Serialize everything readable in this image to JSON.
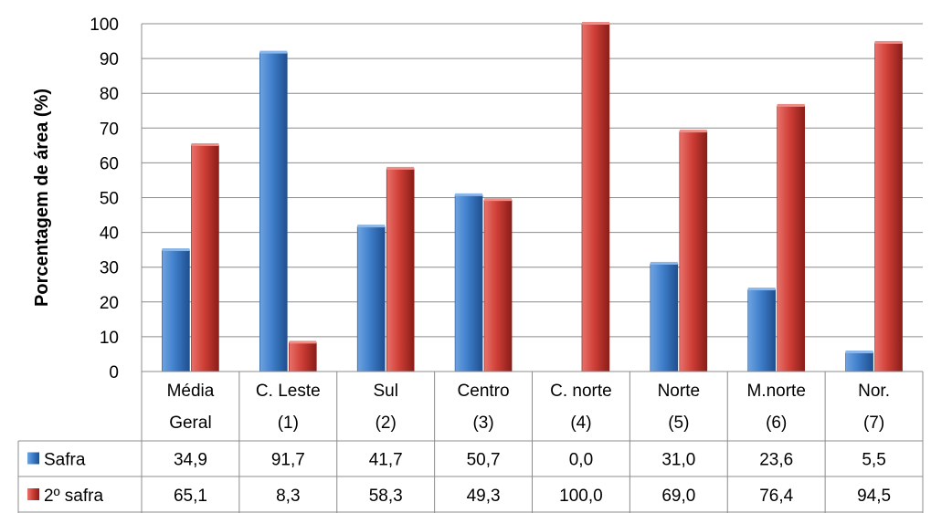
{
  "chart_data": {
    "type": "bar",
    "ylabel": "Porcentagem de área (%)",
    "ylim": [
      0,
      100
    ],
    "yticks": [
      0,
      10,
      20,
      30,
      40,
      50,
      60,
      70,
      80,
      90,
      100
    ],
    "grid": true,
    "categories": [
      [
        "Média",
        "Geral"
      ],
      [
        "C. Leste",
        "(1)"
      ],
      [
        "Sul",
        "(2)"
      ],
      [
        "Centro",
        "(3)"
      ],
      [
        "C. norte",
        "(4)"
      ],
      [
        "Norte",
        "(5)"
      ],
      [
        "M.norte",
        "(6)"
      ],
      [
        "Nor.",
        "(7)"
      ]
    ],
    "series": [
      {
        "name": "Safra",
        "color": "#3b78c2",
        "values": [
          34.9,
          91.7,
          41.7,
          50.7,
          0.0,
          31.0,
          23.6,
          5.5
        ],
        "labels": [
          "34,9",
          "91,7",
          "41,7",
          "50,7",
          "0,0",
          "31,0",
          "23,6",
          "5,5"
        ]
      },
      {
        "name": "2º safra",
        "color": "#c83a33",
        "values": [
          65.1,
          8.3,
          58.3,
          49.3,
          100.0,
          69.0,
          76.4,
          94.5
        ],
        "labels": [
          "65,1",
          "8,3",
          "58,3",
          "49,3",
          "100,0",
          "69,0",
          "76,4",
          "94,5"
        ]
      }
    ],
    "legend": "data-table"
  }
}
